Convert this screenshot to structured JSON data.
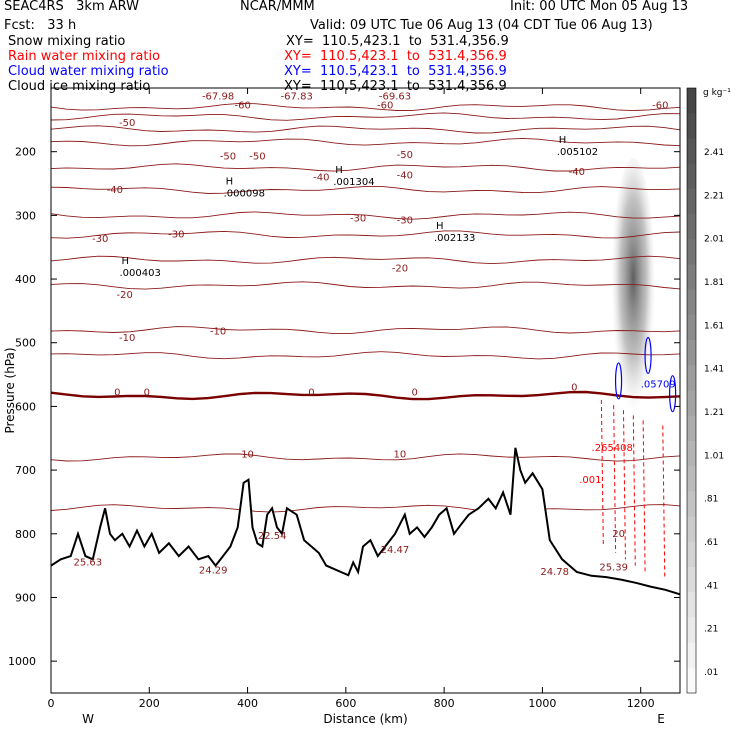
{
  "header": {
    "project": "SEAC4RS   3km ARW",
    "org": "NCAR/MMM",
    "init": "Init: 00 UTC Mon 05 Aug 13",
    "fcst": "Fcst:   33 h",
    "valid": "Valid: 09 UTC Tue 06 Aug 13 (04 CDT Tue 06 Aug 13)",
    "fields": [
      {
        "name": "Snow mixing ratio",
        "xy": "XY=  110.5,423.1  to  531.4,356.9",
        "color": "#000000"
      },
      {
        "name": "Rain water mixing ratio",
        "xy": "XY=  110.5,423.1  to  531.4,356.9",
        "color": "#ff0000"
      },
      {
        "name": "Cloud water mixing ratio",
        "xy": "XY=  110.5,423.1  to  531.4,356.9",
        "color": "#0000ff"
      },
      {
        "name": "Cloud ice mixing ratio",
        "xy": "XY=  110.5,423.1  to  531.4,356.9",
        "color": "#000000"
      }
    ]
  },
  "chart_data": {
    "type": "cross-section",
    "xlabel": "Distance (km)",
    "ylabel": "Pressure (hPa)",
    "xlim": [
      0,
      1280
    ],
    "ylim": [
      1050,
      100
    ],
    "x_ticks": [
      0,
      200,
      400,
      600,
      800,
      1000,
      1200
    ],
    "y_ticks": [
      200,
      300,
      400,
      500,
      600,
      700,
      800,
      900,
      1000
    ],
    "x_end_labels": {
      "left": "W",
      "right": "E"
    },
    "colorbar": {
      "unit": "g kg⁻¹",
      "labels": [
        "2.41",
        "2.21",
        "2.01",
        "1.81",
        "1.61",
        "1.41",
        "1.21",
        "1.01",
        ".81",
        ".61",
        ".41",
        ".21",
        ".01"
      ]
    },
    "temperature_contours": [
      {
        "value": "-60",
        "p": 130
      },
      {
        "value": "-60",
        "p": 145
      },
      {
        "value": "-50",
        "p": 165
      },
      {
        "value": "-50",
        "p": 185
      },
      {
        "value": "-40",
        "p": 225
      },
      {
        "value": "-40",
        "p": 260
      },
      {
        "value": "-30",
        "p": 300
      },
      {
        "value": "-30",
        "p": 330
      },
      {
        "value": "-20",
        "p": 370
      },
      {
        "value": "-20",
        "p": 410
      },
      {
        "value": "-10",
        "p": 480
      },
      {
        "value": "-10",
        "p": 520
      },
      {
        "value": "0",
        "p": 583
      },
      {
        "value": "10",
        "p": 680
      },
      {
        "value": "20",
        "p": 760
      }
    ],
    "temperature_labels": [
      {
        "text": "-67.98",
        "x": 340,
        "p": 118
      },
      {
        "text": "-67.83",
        "x": 500,
        "p": 118
      },
      {
        "text": "-69.63",
        "x": 700,
        "p": 118
      },
      {
        "text": "-60",
        "x": 390,
        "p": 132
      },
      {
        "text": "-60",
        "x": 680,
        "p": 132
      },
      {
        "text": "-60",
        "x": 1240,
        "p": 132
      },
      {
        "text": "-50",
        "x": 155,
        "p": 160
      },
      {
        "text": "-50",
        "x": 360,
        "p": 212
      },
      {
        "text": "-50",
        "x": 420,
        "p": 212
      },
      {
        "text": "-50",
        "x": 720,
        "p": 210
      },
      {
        "text": "-40",
        "x": 130,
        "p": 265
      },
      {
        "text": "-40",
        "x": 550,
        "p": 245
      },
      {
        "text": "-40",
        "x": 720,
        "p": 242
      },
      {
        "text": "-40",
        "x": 1070,
        "p": 237
      },
      {
        "text": "-30",
        "x": 100,
        "p": 342
      },
      {
        "text": "-30",
        "x": 255,
        "p": 335
      },
      {
        "text": "-30",
        "x": 625,
        "p": 310
      },
      {
        "text": "-30",
        "x": 720,
        "p": 313
      },
      {
        "text": "-20",
        "x": 150,
        "p": 430
      },
      {
        "text": "-20",
        "x": 710,
        "p": 388
      },
      {
        "text": "-10",
        "x": 155,
        "p": 497
      },
      {
        "text": "-10",
        "x": 340,
        "p": 487
      },
      {
        "text": "0",
        "x": 135,
        "p": 583
      },
      {
        "text": "0",
        "x": 195,
        "p": 583
      },
      {
        "text": "0",
        "x": 530,
        "p": 583
      },
      {
        "text": "0",
        "x": 740,
        "p": 583
      },
      {
        "text": "0",
        "x": 1065,
        "p": 575
      },
      {
        "text": "10",
        "x": 400,
        "p": 680
      },
      {
        "text": "10",
        "x": 710,
        "p": 680
      },
      {
        "text": "20",
        "x": 1155,
        "p": 805
      }
    ],
    "maxima": [
      {
        "text": ".000098",
        "x": 392,
        "p": 270
      },
      {
        "text": ".001304",
        "x": 615,
        "p": 252
      },
      {
        "text": ".002133",
        "x": 820,
        "p": 340
      },
      {
        "text": ".000403",
        "x": 180,
        "p": 395
      },
      {
        "text": ".005102",
        "x": 1070,
        "p": 205
      }
    ],
    "rain_labels": [
      {
        "text": ".265408",
        "x": 1100,
        "p": 670
      },
      {
        "text": ".001",
        "x": 1075,
        "p": 720
      }
    ],
    "cloud_water_labels": [
      {
        "text": ".05709",
        "x": 1200,
        "p": 570
      }
    ],
    "surface_labels": [
      {
        "text": "25.63",
        "x": 75,
        "p": 850
      },
      {
        "text": "24.29",
        "x": 330,
        "p": 862
      },
      {
        "text": "22.54",
        "x": 450,
        "p": 808
      },
      {
        "text": "24.47",
        "x": 700,
        "p": 830
      },
      {
        "text": "24.78",
        "x": 1025,
        "p": 865
      },
      {
        "text": "25.39",
        "x": 1145,
        "p": 858
      }
    ],
    "terrain": [
      [
        0,
        850
      ],
      [
        20,
        840
      ],
      [
        40,
        835
      ],
      [
        55,
        800
      ],
      [
        70,
        835
      ],
      [
        85,
        840
      ],
      [
        100,
        790
      ],
      [
        110,
        760
      ],
      [
        120,
        800
      ],
      [
        130,
        810
      ],
      [
        145,
        800
      ],
      [
        160,
        820
      ],
      [
        175,
        795
      ],
      [
        190,
        820
      ],
      [
        205,
        800
      ],
      [
        220,
        830
      ],
      [
        240,
        815
      ],
      [
        260,
        835
      ],
      [
        280,
        820
      ],
      [
        300,
        840
      ],
      [
        320,
        835
      ],
      [
        335,
        850
      ],
      [
        350,
        835
      ],
      [
        365,
        820
      ],
      [
        380,
        790
      ],
      [
        392,
        720
      ],
      [
        402,
        715
      ],
      [
        410,
        790
      ],
      [
        420,
        815
      ],
      [
        430,
        820
      ],
      [
        440,
        770
      ],
      [
        450,
        760
      ],
      [
        460,
        790
      ],
      [
        470,
        800
      ],
      [
        480,
        760
      ],
      [
        500,
        770
      ],
      [
        515,
        810
      ],
      [
        530,
        820
      ],
      [
        545,
        830
      ],
      [
        560,
        850
      ],
      [
        575,
        855
      ],
      [
        590,
        860
      ],
      [
        605,
        865
      ],
      [
        615,
        845
      ],
      [
        625,
        860
      ],
      [
        635,
        820
      ],
      [
        650,
        810
      ],
      [
        665,
        835
      ],
      [
        680,
        820
      ],
      [
        700,
        800
      ],
      [
        720,
        770
      ],
      [
        730,
        800
      ],
      [
        745,
        790
      ],
      [
        760,
        805
      ],
      [
        775,
        790
      ],
      [
        790,
        770
      ],
      [
        805,
        760
      ],
      [
        820,
        800
      ],
      [
        835,
        785
      ],
      [
        850,
        770
      ],
      [
        870,
        760
      ],
      [
        890,
        745
      ],
      [
        905,
        760
      ],
      [
        920,
        735
      ],
      [
        935,
        770
      ],
      [
        945,
        665
      ],
      [
        955,
        700
      ],
      [
        965,
        720
      ],
      [
        980,
        705
      ],
      [
        1000,
        730
      ],
      [
        1015,
        810
      ],
      [
        1040,
        840
      ],
      [
        1070,
        860
      ],
      [
        1100,
        866
      ],
      [
        1130,
        868
      ],
      [
        1160,
        872
      ],
      [
        1190,
        877
      ],
      [
        1220,
        883
      ],
      [
        1250,
        888
      ],
      [
        1280,
        895
      ]
    ],
    "shading": {
      "x_range": [
        1140,
        1230
      ],
      "p_range": [
        210,
        630
      ],
      "max": 2.41
    }
  }
}
